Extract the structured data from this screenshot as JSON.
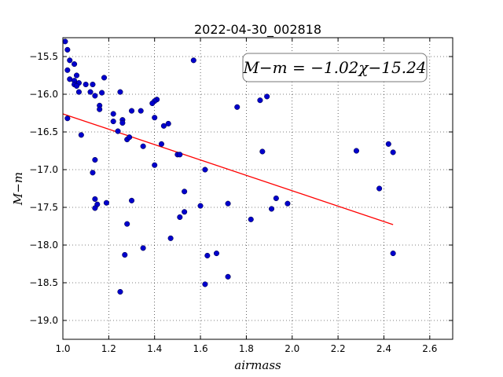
{
  "chart_data": {
    "type": "scatter",
    "title": "2022-04-30_002818",
    "xlabel": "airmass",
    "ylabel": "M−m",
    "xlim": [
      1.0,
      2.7
    ],
    "ylim": [
      -19.25,
      -15.25
    ],
    "xticks": [
      "1.0",
      "1.2",
      "1.4",
      "1.6",
      "1.8",
      "2.0",
      "2.2",
      "2.4",
      "2.6"
    ],
    "yticks": [
      "−15.5",
      "−16.0",
      "−16.5",
      "−17.0",
      "−17.5",
      "−18.0",
      "−18.5",
      "−19.0"
    ],
    "grid": true,
    "annotation": "M−m = −1.02χ−15.24",
    "fit": {
      "slope": -1.02,
      "intercept": -15.24,
      "x_range": [
        1.0,
        2.44
      ],
      "color": "#ff0000"
    },
    "marker_color": "#0000cc",
    "points": [
      [
        1.01,
        -15.3
      ],
      [
        1.02,
        -15.41
      ],
      [
        1.03,
        -15.55
      ],
      [
        1.05,
        -15.6
      ],
      [
        1.02,
        -15.68
      ],
      [
        1.06,
        -15.75
      ],
      [
        1.03,
        -15.8
      ],
      [
        1.05,
        -15.82
      ],
      [
        1.07,
        -15.85
      ],
      [
        1.05,
        -15.87
      ],
      [
        1.06,
        -15.89
      ],
      [
        1.1,
        -15.87
      ],
      [
        1.13,
        -15.87
      ],
      [
        1.18,
        -15.78
      ],
      [
        1.07,
        -15.97
      ],
      [
        1.12,
        -15.97
      ],
      [
        1.17,
        -15.98
      ],
      [
        1.14,
        -16.02
      ],
      [
        1.25,
        -15.97
      ],
      [
        1.16,
        -16.15
      ],
      [
        1.16,
        -16.2
      ],
      [
        1.02,
        -16.32
      ],
      [
        1.22,
        -16.26
      ],
      [
        1.22,
        -16.36
      ],
      [
        1.26,
        -16.34
      ],
      [
        1.26,
        -16.38
      ],
      [
        1.3,
        -16.22
      ],
      [
        1.34,
        -16.22
      ],
      [
        1.41,
        -16.07
      ],
      [
        1.4,
        -16.09
      ],
      [
        1.39,
        -16.12
      ],
      [
        1.4,
        -16.31
      ],
      [
        1.44,
        -16.42
      ],
      [
        1.46,
        -16.39
      ],
      [
        1.08,
        -16.54
      ],
      [
        1.24,
        -16.49
      ],
      [
        1.28,
        -16.6
      ],
      [
        1.29,
        -16.57
      ],
      [
        1.35,
        -16.69
      ],
      [
        1.43,
        -16.66
      ],
      [
        1.5,
        -16.8
      ],
      [
        1.51,
        -16.8
      ],
      [
        1.57,
        -15.55
      ],
      [
        1.76,
        -16.17
      ],
      [
        1.86,
        -16.08
      ],
      [
        1.89,
        -16.03
      ],
      [
        1.14,
        -16.87
      ],
      [
        1.13,
        -17.04
      ],
      [
        1.4,
        -16.94
      ],
      [
        1.62,
        -17.0
      ],
      [
        1.87,
        -16.76
      ],
      [
        1.14,
        -17.39
      ],
      [
        1.15,
        -17.46
      ],
      [
        1.19,
        -17.44
      ],
      [
        1.14,
        -17.51
      ],
      [
        1.3,
        -17.41
      ],
      [
        1.53,
        -17.29
      ],
      [
        1.6,
        -17.48
      ],
      [
        1.72,
        -17.45
      ],
      [
        1.93,
        -17.38
      ],
      [
        1.98,
        -17.45
      ],
      [
        1.91,
        -17.52
      ],
      [
        1.53,
        -17.56
      ],
      [
        1.51,
        -17.63
      ],
      [
        1.82,
        -17.66
      ],
      [
        1.28,
        -17.72
      ],
      [
        1.47,
        -17.91
      ],
      [
        1.35,
        -18.04
      ],
      [
        1.27,
        -18.13
      ],
      [
        1.63,
        -18.14
      ],
      [
        1.67,
        -18.11
      ],
      [
        1.72,
        -18.42
      ],
      [
        1.62,
        -18.52
      ],
      [
        1.25,
        -18.62
      ],
      [
        2.28,
        -16.75
      ],
      [
        2.42,
        -16.66
      ],
      [
        2.44,
        -16.77
      ],
      [
        2.38,
        -17.25
      ],
      [
        2.44,
        -18.11
      ]
    ]
  }
}
